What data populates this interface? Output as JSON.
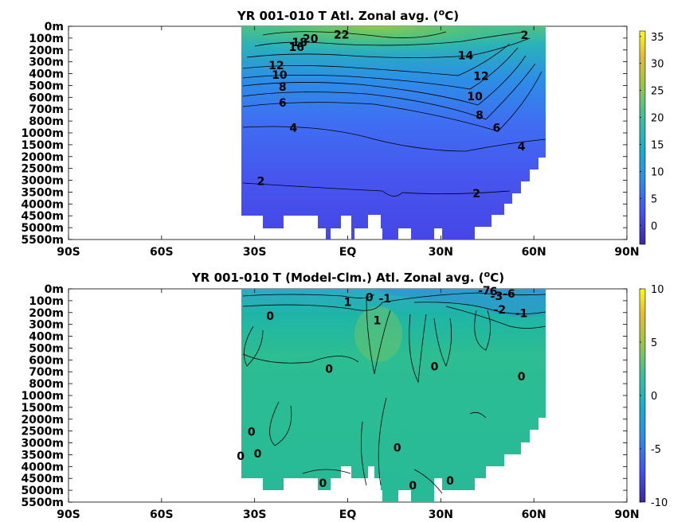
{
  "chart_data": [
    {
      "type": "heatmap",
      "title": "YR 001-010 T Atl. Zonal avg. (",
      "title_sup": "o",
      "title_unit": "C)",
      "x_ticks": [
        "90S",
        "60S",
        "30S",
        "EQ",
        "30N",
        "60N",
        "90N"
      ],
      "x_tick_values": [
        -90,
        -60,
        -30,
        0,
        30,
        60,
        90
      ],
      "xlim": [
        -90,
        90
      ],
      "y_ticks": [
        "0m",
        "100m",
        "200m",
        "300m",
        "400m",
        "500m",
        "600m",
        "700m",
        "800m",
        "1000m",
        "1500m",
        "2000m",
        "2500m",
        "3000m",
        "3500m",
        "4000m",
        "4500m",
        "5000m",
        "5500m"
      ],
      "data_lat_range": [
        -34,
        64
      ],
      "colorbar": {
        "ticks": [
          "35",
          "30",
          "25",
          "20",
          "15",
          "10",
          "5",
          "0"
        ],
        "tick_values": [
          35,
          30,
          25,
          20,
          15,
          10,
          5,
          0
        ],
        "range": [
          -3.5,
          36
        ]
      },
      "contour_labels": [
        {
          "text": "22",
          "lat": -2,
          "depth": 0.7
        },
        {
          "text": "20",
          "lat": -12,
          "depth": 1.05
        },
        {
          "text": "18",
          "lat": -15.5,
          "depth": 1.35
        },
        {
          "text": "16",
          "lat": -16.5,
          "depth": 1.75
        },
        {
          "text": "2",
          "lat": 57,
          "depth": 0.75
        },
        {
          "text": "14",
          "lat": 38,
          "depth": 2.45
        },
        {
          "text": "12",
          "lat": -23,
          "depth": 3.3
        },
        {
          "text": "12",
          "lat": 43,
          "depth": 4.2
        },
        {
          "text": "10",
          "lat": -22,
          "depth": 4.1
        },
        {
          "text": "10",
          "lat": 41,
          "depth": 5.9
        },
        {
          "text": "8",
          "lat": -21,
          "depth": 5.1
        },
        {
          "text": "8",
          "lat": 42.5,
          "depth": 7.5
        },
        {
          "text": "6",
          "lat": -21,
          "depth": 6.45
        },
        {
          "text": "6",
          "lat": 48,
          "depth": 8.55
        },
        {
          "text": "4",
          "lat": -17.5,
          "depth": 8.55
        },
        {
          "text": "4",
          "lat": 56,
          "depth": 10.15
        },
        {
          "text": "2",
          "lat": -28,
          "depth": 13.05
        },
        {
          "text": "2",
          "lat": 41.5,
          "depth": 14.1
        }
      ]
    },
    {
      "type": "heatmap",
      "title": "YR 001-010 T (Model-Clm.) Atl. Zonal avg. (",
      "title_sup": "o",
      "title_unit": "C)",
      "x_ticks": [
        "90S",
        "60S",
        "30S",
        "EQ",
        "30N",
        "60N",
        "90N"
      ],
      "x_tick_values": [
        -90,
        -60,
        -30,
        0,
        30,
        60,
        90
      ],
      "xlim": [
        -90,
        90
      ],
      "y_ticks": [
        "0m",
        "100m",
        "200m",
        "300m",
        "400m",
        "500m",
        "600m",
        "700m",
        "800m",
        "1000m",
        "1500m",
        "2000m",
        "2500m",
        "3000m",
        "3500m",
        "4000m",
        "4500m",
        "5000m",
        "5500m"
      ],
      "data_lat_range": [
        -34,
        64
      ],
      "colorbar": {
        "ticks": [
          "10",
          "5",
          "0",
          "-5",
          "-10"
        ],
        "tick_values": [
          10,
          5,
          0,
          -5,
          -10
        ],
        "range": [
          -10,
          10
        ]
      },
      "contour_labels": [
        {
          "text": "1",
          "lat": 0,
          "depth": 1.1
        },
        {
          "text": "0",
          "lat": 7,
          "depth": 0.7
        },
        {
          "text": "-1",
          "lat": 12,
          "depth": 0.8
        },
        {
          "text": "1",
          "lat": 9.5,
          "depth": 2.65
        },
        {
          "text": "0",
          "lat": -25,
          "depth": 2.3
        },
        {
          "text": "-7",
          "lat": 44,
          "depth": 0.15
        },
        {
          "text": "6",
          "lat": 47,
          "depth": 0.2
        },
        {
          "text": "-3",
          "lat": 48,
          "depth": 0.6
        },
        {
          "text": "-6",
          "lat": 52,
          "depth": 0.4
        },
        {
          "text": "-2",
          "lat": 49,
          "depth": 1.75
        },
        {
          "text": "-1",
          "lat": 56,
          "depth": 2.05
        },
        {
          "text": "0",
          "lat": -6,
          "depth": 6.75
        },
        {
          "text": "0",
          "lat": 28,
          "depth": 6.55
        },
        {
          "text": "0",
          "lat": 56,
          "depth": 7.4
        },
        {
          "text": "0",
          "lat": -31,
          "depth": 12.05
        },
        {
          "text": "0",
          "lat": -29,
          "depth": 13.9
        },
        {
          "text": "0",
          "lat": -34.5,
          "depth": 14.1
        },
        {
          "text": "0",
          "lat": 16,
          "depth": 13.4
        },
        {
          "text": "0",
          "lat": -8,
          "depth": 16.4
        },
        {
          "text": "0",
          "lat": 21,
          "depth": 16.6
        },
        {
          "text": "0",
          "lat": 33,
          "depth": 16.2
        }
      ]
    }
  ]
}
